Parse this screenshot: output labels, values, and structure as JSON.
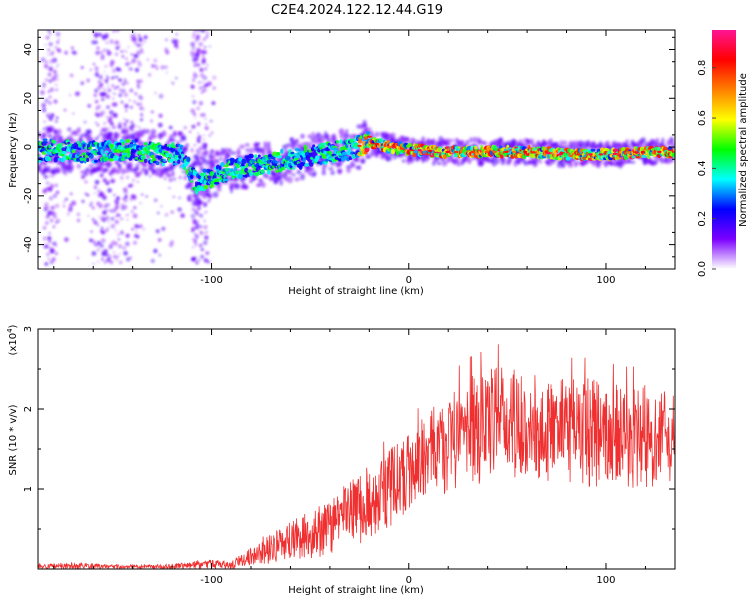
{
  "title": "C2E4.2024.122.12.44.G19",
  "chart_data": [
    {
      "type": "heatmap",
      "xlabel": "Height of straight line (km)",
      "ylabel": "Frequency (Hz)",
      "xlim": [
        -188,
        135
      ],
      "ylim": [
        -50,
        48
      ],
      "x_ticks": [
        -100,
        0,
        100
      ],
      "x_tick_labels": [
        "-100",
        "0",
        "100"
      ],
      "y_ticks": [
        -40,
        -20,
        0,
        20,
        40
      ],
      "y_tick_labels": [
        "-40",
        "-20",
        "0",
        "20",
        "40"
      ],
      "ridge": [
        {
          "x": -185,
          "f": -1
        },
        {
          "x": -160,
          "f": -2
        },
        {
          "x": -140,
          "f": -1
        },
        {
          "x": -125,
          "f": -3
        },
        {
          "x": -115,
          "f": -3
        },
        {
          "x": -108,
          "f": -15
        },
        {
          "x": -100,
          "f": -12
        },
        {
          "x": -90,
          "f": -9
        },
        {
          "x": -75,
          "f": -7
        },
        {
          "x": -60,
          "f": -5
        },
        {
          "x": -45,
          "f": -3
        },
        {
          "x": -30,
          "f": -1
        },
        {
          "x": -20,
          "f": 2
        },
        {
          "x": -10,
          "f": 0
        },
        {
          "x": 0,
          "f": -1
        },
        {
          "x": 20,
          "f": -2
        },
        {
          "x": 40,
          "f": -2
        },
        {
          "x": 60,
          "f": -2
        },
        {
          "x": 80,
          "f": -3
        },
        {
          "x": 100,
          "f": -3
        },
        {
          "x": 120,
          "f": -2
        },
        {
          "x": 135,
          "f": -2
        }
      ],
      "colorbar": {
        "label": "Normalized spectral amplitude",
        "range": [
          0,
          0.95
        ],
        "ticks": [
          0.0,
          0.2,
          0.4,
          0.6,
          0.8
        ],
        "tick_labels": [
          "0.0",
          "0.2",
          "0.4",
          "0.6",
          "0.8"
        ],
        "colors": [
          "#ffffff",
          "#7b00ff",
          "#0000ff",
          "#00ffff",
          "#00ff00",
          "#ffff00",
          "#ff8000",
          "#ff0000",
          "#ff1493"
        ]
      }
    },
    {
      "type": "line",
      "xlabel": "Height of straight line (km)",
      "ylabel": "SNR (10 * v/v)",
      "y_scale_label": "(x10",
      "y_scale_exp": "4",
      "y_scale_close": ")",
      "xlim": [
        -188,
        135
      ],
      "ylim": [
        0,
        3
      ],
      "x_ticks": [
        -100,
        0,
        100
      ],
      "x_tick_labels": [
        "-100",
        "0",
        "100"
      ],
      "y_ticks": [
        1,
        2,
        3
      ],
      "y_tick_labels": [
        "1",
        "2",
        "3"
      ],
      "series": [
        {
          "color": "#f03030",
          "envelope": [
            {
              "x": -188,
              "lo": 0.0,
              "hi": 0.06
            },
            {
              "x": -165,
              "lo": 0.0,
              "hi": 0.08
            },
            {
              "x": -145,
              "lo": 0.0,
              "hi": 0.05
            },
            {
              "x": -120,
              "lo": 0.0,
              "hi": 0.06
            },
            {
              "x": -105,
              "lo": 0.0,
              "hi": 0.12
            },
            {
              "x": -90,
              "lo": 0.0,
              "hi": 0.1
            },
            {
              "x": -75,
              "lo": 0.05,
              "hi": 0.35
            },
            {
              "x": -60,
              "lo": 0.1,
              "hi": 0.6
            },
            {
              "x": -45,
              "lo": 0.15,
              "hi": 0.8
            },
            {
              "x": -30,
              "lo": 0.25,
              "hi": 1.1
            },
            {
              "x": -15,
              "lo": 0.4,
              "hi": 1.4
            },
            {
              "x": 0,
              "lo": 0.7,
              "hi": 1.7
            },
            {
              "x": 15,
              "lo": 0.9,
              "hi": 2.1
            },
            {
              "x": 30,
              "lo": 1.0,
              "hi": 2.4
            },
            {
              "x": 50,
              "lo": 1.1,
              "hi": 2.6
            },
            {
              "x": 70,
              "lo": 1.1,
              "hi": 2.4
            },
            {
              "x": 90,
              "lo": 1.0,
              "hi": 2.4
            },
            {
              "x": 110,
              "lo": 1.0,
              "hi": 2.3
            },
            {
              "x": 135,
              "lo": 1.0,
              "hi": 2.3
            }
          ]
        }
      ]
    }
  ]
}
